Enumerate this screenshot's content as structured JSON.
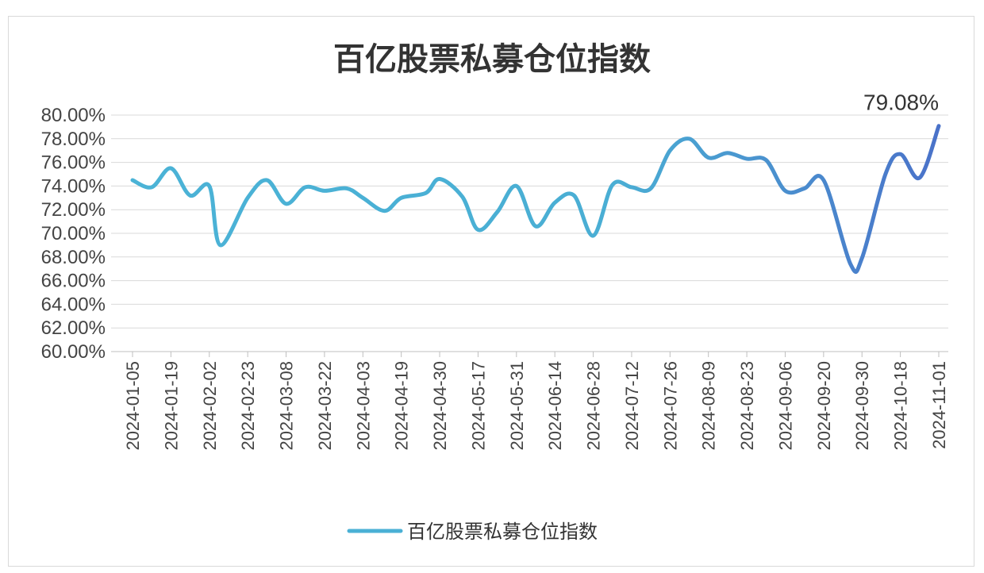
{
  "chart_data": {
    "type": "line",
    "title": "百亿股票私募仓位指数",
    "xlabel": "",
    "ylabel": "",
    "ylim": [
      60,
      80
    ],
    "y_ticks": [
      "60.00%",
      "62.00%",
      "64.00%",
      "66.00%",
      "68.00%",
      "70.00%",
      "72.00%",
      "74.00%",
      "76.00%",
      "78.00%",
      "80.00%"
    ],
    "x_tick_labels": [
      "2024-01-05",
      "2024-01-19",
      "2024-02-02",
      "2024-02-23",
      "2024-03-08",
      "2024-03-22",
      "2024-04-03",
      "2024-04-19",
      "2024-04-30",
      "2024-05-17",
      "2024-05-31",
      "2024-06-14",
      "2024-06-28",
      "2024-07-12",
      "2024-07-26",
      "2024-08-09",
      "2024-08-23",
      "2024-09-06",
      "2024-09-20",
      "2024-09-30",
      "2024-10-18",
      "2024-11-01"
    ],
    "grid": true,
    "legend_position": "bottom",
    "series": [
      {
        "name": "百亿股票私募仓位指数",
        "color_start": "#4bb3d6",
        "color_end": "#4a72c9",
        "x": [
          "2024-01-05",
          "2024-01-12",
          "2024-01-19",
          "2024-01-26",
          "2024-02-02",
          "2024-02-08",
          "2024-02-23",
          "2024-03-01",
          "2024-03-08",
          "2024-03-15",
          "2024-03-22",
          "2024-03-29",
          "2024-04-03",
          "2024-04-12",
          "2024-04-19",
          "2024-04-26",
          "2024-04-30",
          "2024-05-10",
          "2024-05-17",
          "2024-05-24",
          "2024-05-31",
          "2024-06-07",
          "2024-06-14",
          "2024-06-21",
          "2024-06-28",
          "2024-07-05",
          "2024-07-12",
          "2024-07-19",
          "2024-07-26",
          "2024-08-02",
          "2024-08-09",
          "2024-08-16",
          "2024-08-23",
          "2024-08-30",
          "2024-09-06",
          "2024-09-13",
          "2024-09-20",
          "2024-09-27",
          "2024-09-30",
          "2024-10-11",
          "2024-10-18",
          "2024-10-25",
          "2024-11-01"
        ],
        "values": [
          74.5,
          73.9,
          75.5,
          73.2,
          74.0,
          69.0,
          73.0,
          74.5,
          72.5,
          73.9,
          73.6,
          73.8,
          73.0,
          71.9,
          73.0,
          73.4,
          74.6,
          73.1,
          70.3,
          71.8,
          74.0,
          70.6,
          72.6,
          73.2,
          69.8,
          74.1,
          73.9,
          73.8,
          77.0,
          78.0,
          76.4,
          76.8,
          76.3,
          76.2,
          73.6,
          73.8,
          74.5,
          67.4,
          67.9,
          75.0,
          76.7,
          74.7,
          79.08
        ]
      }
    ],
    "annotations": [
      {
        "text": "79.08%"
      }
    ]
  }
}
